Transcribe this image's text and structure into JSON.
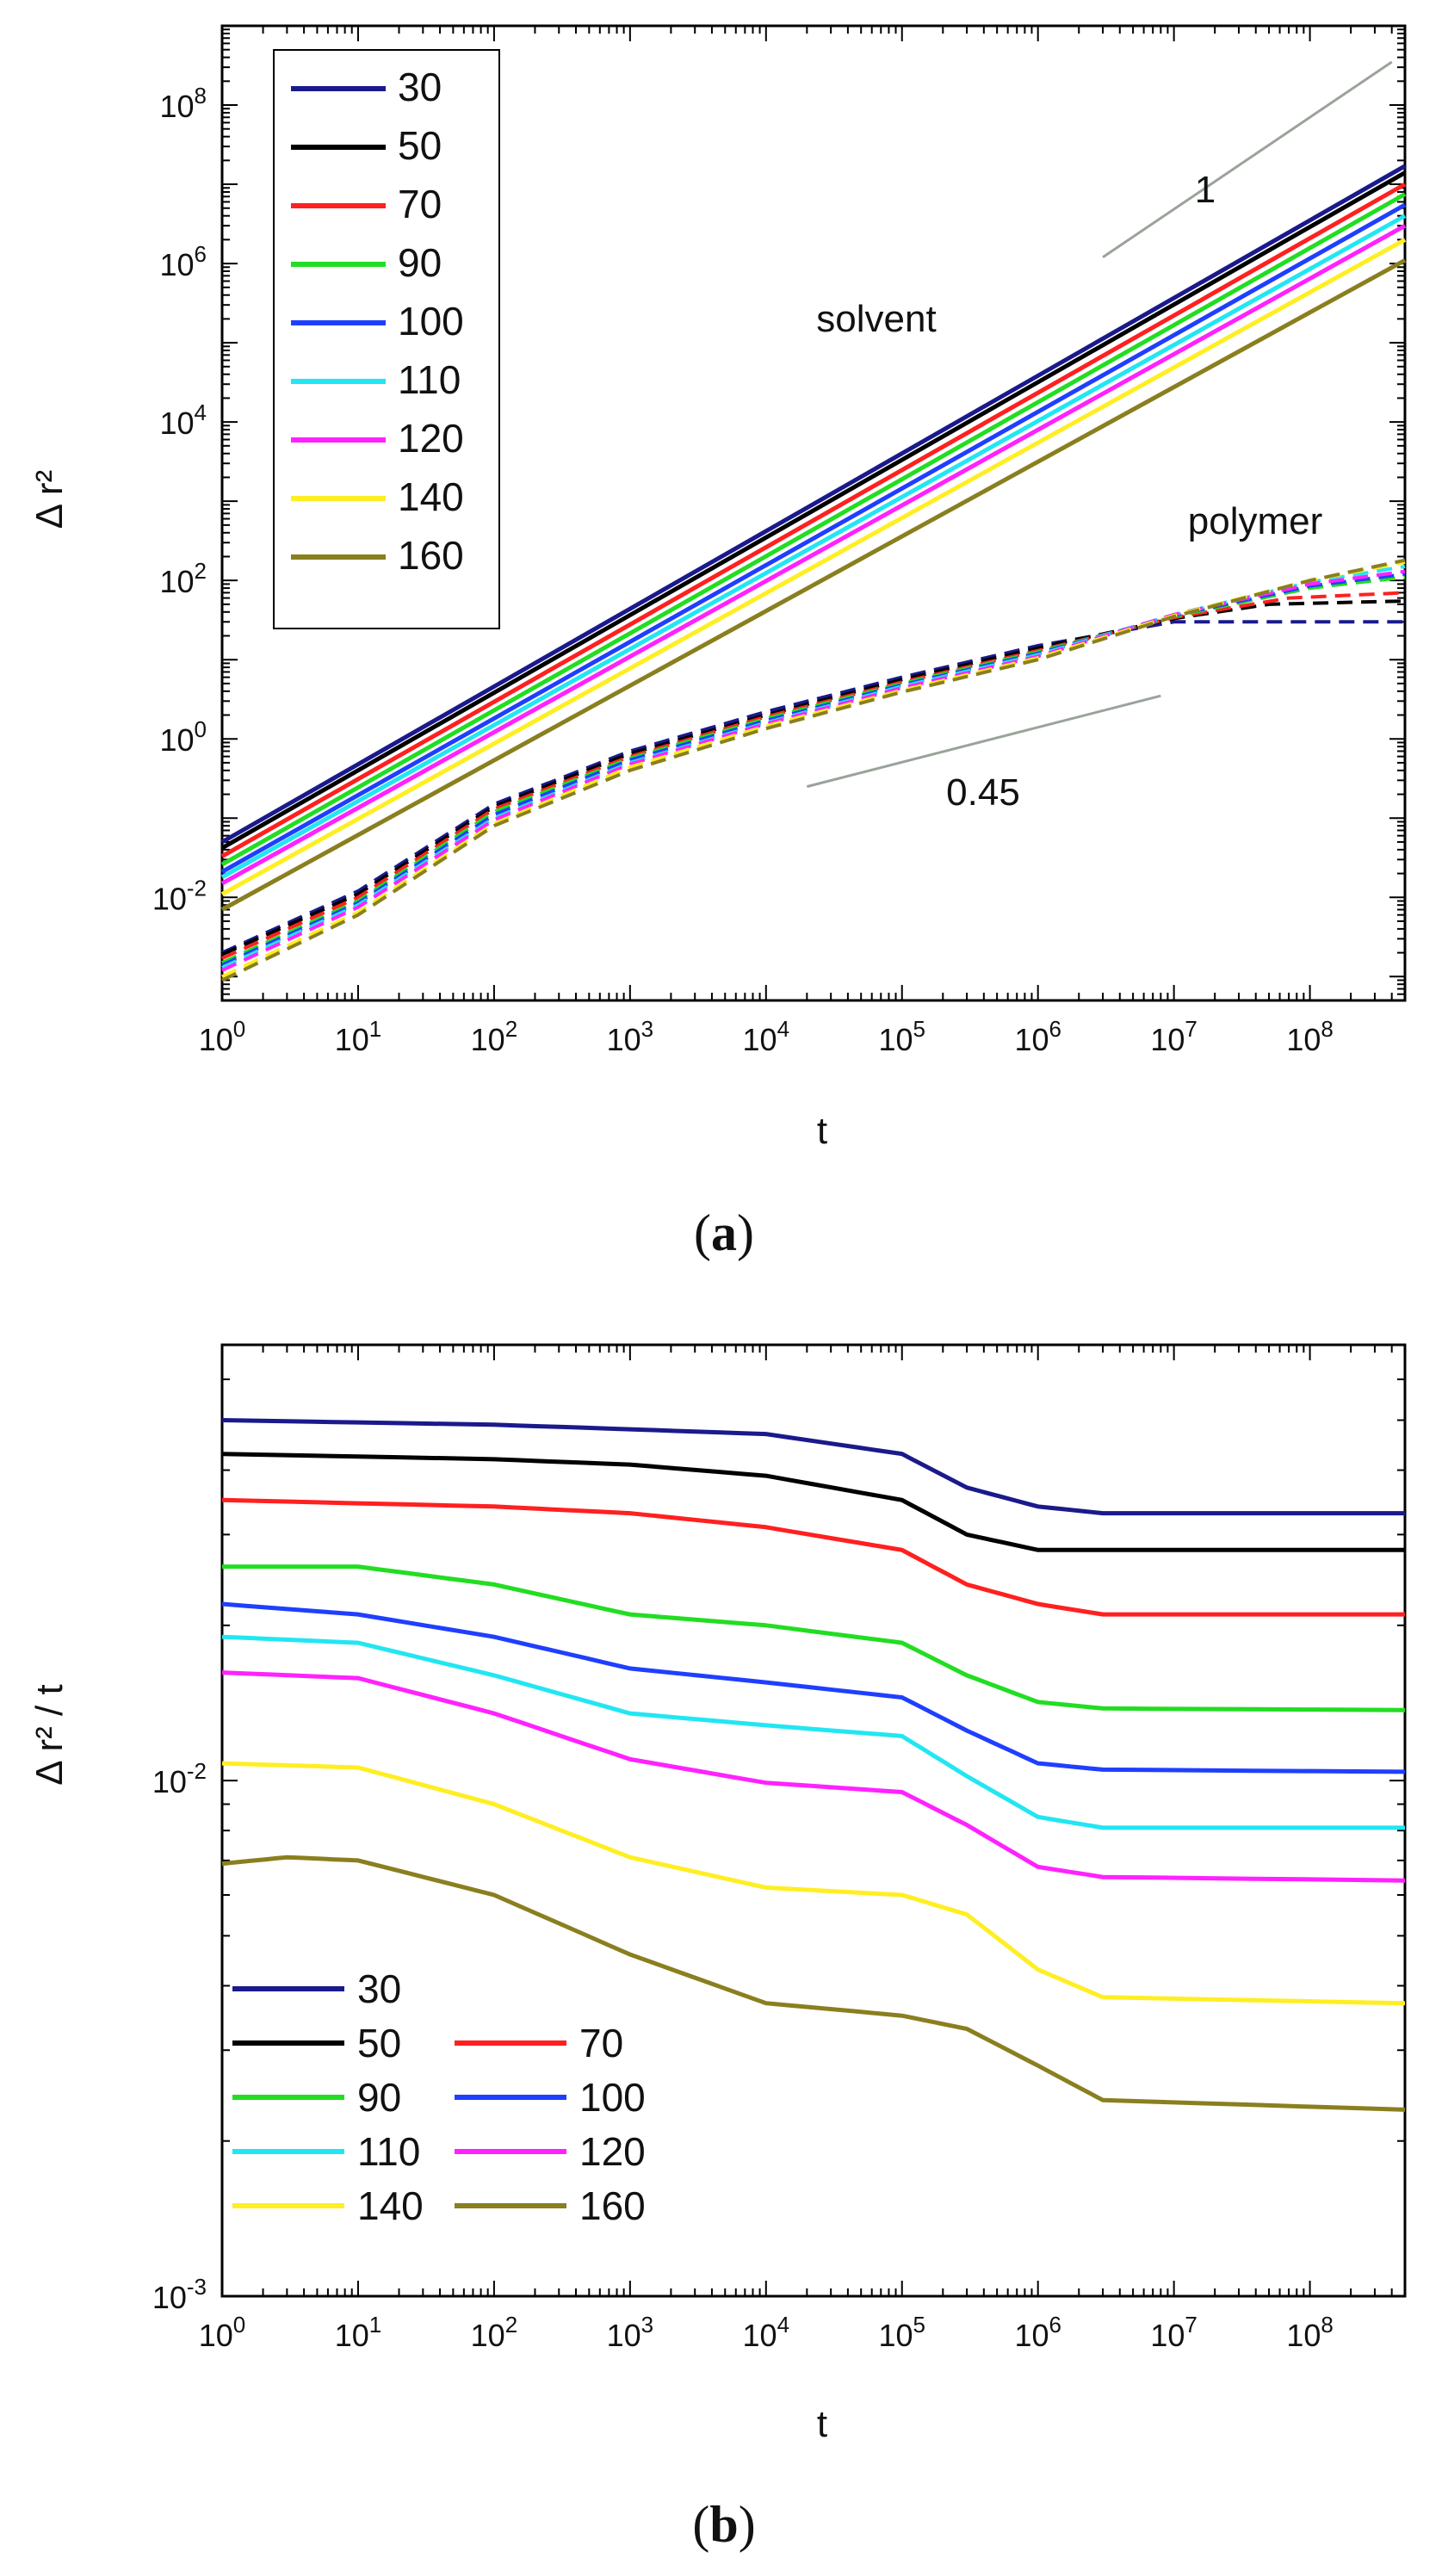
{
  "panels": [
    {
      "caption_open": "(",
      "caption_letter": "a",
      "caption_close": ")"
    },
    {
      "caption_open": "(",
      "caption_letter": "b",
      "caption_close": ")"
    }
  ],
  "colors": {
    "30": "#1a1a8c",
    "50": "#000000",
    "70": "#ff2020",
    "90": "#22dd22",
    "100": "#1f3fff",
    "110": "#22e6f2",
    "120": "#ff22ff",
    "140": "#ffee22",
    "160": "#8a7f1f"
  },
  "chart_data": [
    {
      "type": "line",
      "xlabel": "t",
      "ylabel": "Δ r²",
      "xscale": "log",
      "yscale": "log",
      "xlim": [
        1,
        500000000
      ],
      "ylim": [
        0.0005,
        1000000000
      ],
      "xticks": [
        {
          "base": "10",
          "exp": "0"
        },
        {
          "base": "10",
          "exp": "1"
        },
        {
          "base": "10",
          "exp": "2"
        },
        {
          "base": "10",
          "exp": "3"
        },
        {
          "base": "10",
          "exp": "4"
        },
        {
          "base": "10",
          "exp": "5"
        },
        {
          "base": "10",
          "exp": "6"
        },
        {
          "base": "10",
          "exp": "7"
        },
        {
          "base": "10",
          "exp": "8"
        }
      ],
      "yticks": [
        {
          "base": "10",
          "exp": "-2"
        },
        {
          "base": "10",
          "exp": "0"
        },
        {
          "base": "10",
          "exp": "2"
        },
        {
          "base": "10",
          "exp": "4"
        },
        {
          "base": "10",
          "exp": "6"
        },
        {
          "base": "10",
          "exp": "8"
        }
      ],
      "legend": {
        "placement": "top-left",
        "columns": 1
      },
      "annotations": {
        "solvent": "solvent",
        "polymer": "polymer",
        "slope_1": "1",
        "slope_045": "0.45"
      },
      "series_names": [
        "30",
        "50",
        "70",
        "90",
        "100",
        "110",
        "120",
        "140",
        "160"
      ],
      "solvent_series": [
        {
          "name": "30",
          "style": "solid",
          "x": [
            1,
            500000000
          ],
          "y": [
            0.05,
            17000000
          ]
        },
        {
          "name": "50",
          "style": "solid",
          "x": [
            1,
            500000000
          ],
          "y": [
            0.042,
            14000000
          ]
        },
        {
          "name": "70",
          "style": "solid",
          "x": [
            1,
            500000000
          ],
          "y": [
            0.033,
            10000000
          ]
        },
        {
          "name": "90",
          "style": "solid",
          "x": [
            1,
            500000000
          ],
          "y": [
            0.026,
            7500000
          ]
        },
        {
          "name": "100",
          "style": "solid",
          "x": [
            1,
            500000000
          ],
          "y": [
            0.021,
            5500000
          ]
        },
        {
          "name": "110",
          "style": "solid",
          "x": [
            1,
            500000000
          ],
          "y": [
            0.018,
            4000000
          ]
        },
        {
          "name": "120",
          "style": "solid",
          "x": [
            1,
            500000000
          ],
          "y": [
            0.015,
            3000000
          ]
        },
        {
          "name": "140",
          "style": "solid",
          "x": [
            1,
            500000000
          ],
          "y": [
            0.011,
            2000000
          ]
        },
        {
          "name": "160",
          "style": "solid",
          "x": [
            1,
            500000000
          ],
          "y": [
            0.007,
            1100000
          ]
        }
      ],
      "polymer_series": [
        {
          "name": "30",
          "style": "dashed",
          "x": [
            1,
            10,
            100,
            1000,
            10000,
            100000,
            1000000,
            10000000,
            30000000,
            500000000
          ],
          "y": [
            0.002,
            0.012,
            0.15,
            0.7,
            2.2,
            6,
            15,
            30,
            30,
            30
          ]
        },
        {
          "name": "50",
          "style": "dashed",
          "x": [
            1,
            10,
            100,
            1000,
            10000,
            100000,
            1000000,
            10000000,
            50000000,
            500000000
          ],
          "y": [
            0.0019,
            0.011,
            0.14,
            0.65,
            2.0,
            5.6,
            14,
            33,
            50,
            55
          ]
        },
        {
          "name": "70",
          "style": "dashed",
          "x": [
            1,
            10,
            100,
            1000,
            10000,
            100000,
            1000000,
            10000000,
            70000000,
            500000000
          ],
          "y": [
            0.0017,
            0.01,
            0.13,
            0.6,
            1.9,
            5.2,
            13,
            34,
            60,
            70
          ]
        },
        {
          "name": "90",
          "style": "dashed",
          "x": [
            1,
            10,
            100,
            1000,
            10000,
            100000,
            1000000,
            10000000,
            100000000,
            500000000
          ],
          "y": [
            0.0015,
            0.009,
            0.12,
            0.57,
            1.8,
            5.0,
            12.5,
            35,
            80,
            110
          ]
        },
        {
          "name": "100",
          "style": "dashed",
          "x": [
            1,
            10,
            100,
            1000,
            10000,
            100000,
            1000000,
            10000000,
            100000000,
            500000000
          ],
          "y": [
            0.0014,
            0.0085,
            0.11,
            0.54,
            1.7,
            4.8,
            12,
            36,
            85,
            120
          ]
        },
        {
          "name": "110",
          "style": "dashed",
          "x": [
            1,
            10,
            100,
            1000,
            10000,
            100000,
            1000000,
            10000000,
            100000000,
            500000000
          ],
          "y": [
            0.0013,
            0.008,
            0.1,
            0.5,
            1.6,
            4.6,
            11.5,
            37,
            95,
            150
          ]
        },
        {
          "name": "120",
          "style": "dashed",
          "x": [
            1,
            10,
            100,
            1000,
            10000,
            100000,
            1000000,
            10000000,
            100000000,
            500000000
          ],
          "y": [
            0.0012,
            0.0075,
            0.095,
            0.48,
            1.55,
            4.4,
            11,
            37,
            90,
            130
          ]
        },
        {
          "name": "140",
          "style": "dashed",
          "x": [
            1,
            10,
            100,
            1000,
            10000,
            100000,
            1000000,
            10000000,
            100000000,
            500000000
          ],
          "y": [
            0.001,
            0.0065,
            0.085,
            0.44,
            1.45,
            4.1,
            10.5,
            36,
            100,
            170
          ]
        },
        {
          "name": "160",
          "style": "dashed",
          "x": [
            1,
            10,
            100,
            1000,
            10000,
            100000,
            1000000,
            10000000,
            100000000,
            500000000
          ],
          "y": [
            0.0009,
            0.006,
            0.08,
            0.4,
            1.35,
            3.9,
            10,
            35,
            100,
            180
          ]
        }
      ],
      "guide_lines": [
        {
          "label": "1",
          "x": [
            3000000,
            400000000
          ],
          "y": [
            1200000,
            350000000
          ]
        },
        {
          "label": "0.45",
          "x": [
            20000,
            8000000
          ],
          "y": [
            0.25,
            3.5
          ]
        }
      ]
    },
    {
      "type": "line",
      "xlabel": "t",
      "ylabel": "Δ r² / t",
      "xscale": "log",
      "yscale": "log",
      "xlim": [
        1,
        500000000
      ],
      "ylim": [
        0.001,
        0.07
      ],
      "xticks": [
        {
          "base": "10",
          "exp": "0"
        },
        {
          "base": "10",
          "exp": "1"
        },
        {
          "base": "10",
          "exp": "2"
        },
        {
          "base": "10",
          "exp": "3"
        },
        {
          "base": "10",
          "exp": "4"
        },
        {
          "base": "10",
          "exp": "5"
        },
        {
          "base": "10",
          "exp": "6"
        },
        {
          "base": "10",
          "exp": "7"
        },
        {
          "base": "10",
          "exp": "8"
        }
      ],
      "yticks": [
        {
          "base": "10",
          "exp": "-3"
        },
        {
          "base": "10",
          "exp": "-2"
        }
      ],
      "legend": {
        "placement": "bottom-left",
        "columns": 2
      },
      "legend_rows": [
        [
          "30"
        ],
        [
          "50",
          "70"
        ],
        [
          "90",
          "100"
        ],
        [
          "110",
          "120"
        ],
        [
          "140",
          "160"
        ]
      ],
      "series": [
        {
          "name": "30",
          "x": [
            1,
            100,
            1000,
            10000,
            100000,
            300000,
            1000000,
            3000000,
            500000000
          ],
          "y": [
            0.05,
            0.049,
            0.048,
            0.047,
            0.043,
            0.037,
            0.034,
            0.033,
            0.033
          ]
        },
        {
          "name": "50",
          "x": [
            1,
            100,
            1000,
            10000,
            100000,
            300000,
            1000000,
            3000000,
            500000000
          ],
          "y": [
            0.043,
            0.042,
            0.041,
            0.039,
            0.035,
            0.03,
            0.028,
            0.028,
            0.028
          ]
        },
        {
          "name": "70",
          "x": [
            1,
            100,
            1000,
            10000,
            100000,
            300000,
            1000000,
            3000000,
            500000000
          ],
          "y": [
            0.035,
            0.034,
            0.033,
            0.031,
            0.028,
            0.024,
            0.022,
            0.021,
            0.021
          ]
        },
        {
          "name": "90",
          "x": [
            1,
            10,
            100,
            1000,
            10000,
            100000,
            300000,
            1000000,
            3000000,
            500000000
          ],
          "y": [
            0.026,
            0.026,
            0.024,
            0.021,
            0.02,
            0.0185,
            0.016,
            0.0142,
            0.0138,
            0.0137
          ]
        },
        {
          "name": "100",
          "x": [
            1,
            10,
            100,
            1000,
            10000,
            100000,
            300000,
            1000000,
            3000000,
            500000000
          ],
          "y": [
            0.022,
            0.021,
            0.019,
            0.0165,
            0.0155,
            0.0145,
            0.0125,
            0.0108,
            0.0105,
            0.0104
          ]
        },
        {
          "name": "110",
          "x": [
            1,
            10,
            100,
            1000,
            10000,
            100000,
            300000,
            1000000,
            3000000,
            500000000
          ],
          "y": [
            0.019,
            0.0185,
            0.016,
            0.0135,
            0.0128,
            0.0122,
            0.0102,
            0.0085,
            0.0081,
            0.0081
          ]
        },
        {
          "name": "120",
          "x": [
            1,
            10,
            100,
            1000,
            10000,
            100000,
            300000,
            1000000,
            3000000,
            500000000
          ],
          "y": [
            0.0162,
            0.0158,
            0.0135,
            0.011,
            0.0099,
            0.0095,
            0.0082,
            0.0068,
            0.0065,
            0.0064
          ]
        },
        {
          "name": "140",
          "x": [
            1,
            10,
            100,
            1000,
            10000,
            100000,
            300000,
            1000000,
            3000000,
            500000000
          ],
          "y": [
            0.0108,
            0.0106,
            0.009,
            0.0071,
            0.0062,
            0.006,
            0.0055,
            0.0043,
            0.0038,
            0.0037
          ]
        },
        {
          "name": "160",
          "x": [
            1,
            3,
            10,
            100,
            1000,
            10000,
            100000,
            300000,
            1000000,
            3000000,
            500000000
          ],
          "y": [
            0.0069,
            0.0071,
            0.007,
            0.006,
            0.0046,
            0.0037,
            0.0035,
            0.0033,
            0.0028,
            0.0024,
            0.0023
          ]
        }
      ]
    }
  ]
}
